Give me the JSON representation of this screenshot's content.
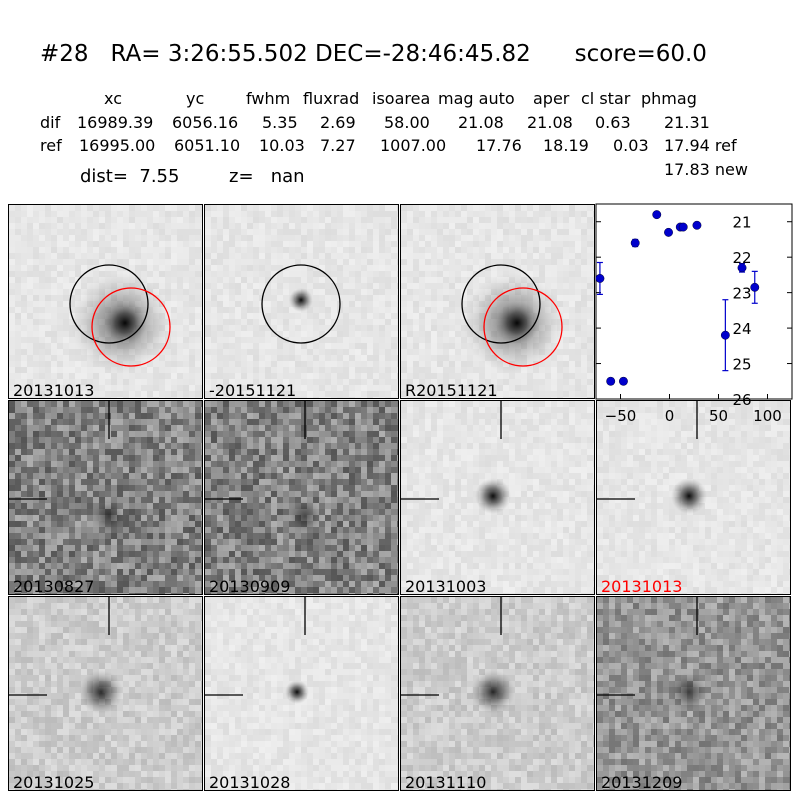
{
  "header": {
    "title": "#28   RA= 3:26:55.502 DEC=-28:46:45.82      score=60.0"
  },
  "table": {
    "columns": [
      "xc",
      "yc",
      "fwhm",
      "fluxrad",
      "isoarea",
      "mag auto",
      "aper",
      "cl star",
      "phmag"
    ],
    "rows": [
      {
        "label": "dif",
        "values": [
          "16989.39",
          "6056.16",
          "5.35",
          "2.69",
          "58.00",
          "21.08",
          "21.08",
          "0.63",
          "21.31"
        ]
      },
      {
        "label": "ref",
        "values": [
          "16995.00",
          "6051.10",
          "10.03",
          "7.27",
          "1007.00",
          "17.76",
          "18.19",
          "0.03",
          "17.94 ref"
        ]
      }
    ],
    "phmag_new": "17.83 new"
  },
  "summary": {
    "dist": "dist=  7.55",
    "z": "z=   nan"
  },
  "stamps": [
    {
      "label": "20131013",
      "kind": "galaxy",
      "circles": true
    },
    {
      "label": "-20151121",
      "kind": "dot",
      "circles": true
    },
    {
      "label": "R20151121",
      "kind": "galaxy",
      "circles": true
    },
    {
      "label": "20130827",
      "kind": "noisy-dark"
    },
    {
      "label": "20130909",
      "kind": "noisy-dark"
    },
    {
      "label": "20131003",
      "kind": "source"
    },
    {
      "label": "20131013",
      "kind": "source",
      "highlight": "#ff0000"
    },
    {
      "label": "20131025",
      "kind": "source-soft"
    },
    {
      "label": "20131028",
      "kind": "source-small"
    },
    {
      "label": "20131110",
      "kind": "source-soft"
    },
    {
      "label": "20131209",
      "kind": "noisy-mid"
    }
  ],
  "chart_data": {
    "type": "scatter",
    "title": "",
    "xlabel": "",
    "ylabel": "",
    "xlim": [
      -75,
      125
    ],
    "ylim": [
      26,
      20.5
    ],
    "y_inverted": true,
    "xticks": [
      -50,
      0,
      50,
      100
    ],
    "yticks": [
      21,
      22,
      23,
      24,
      25,
      26
    ],
    "color": "#0000cc",
    "points": [
      {
        "x": -71,
        "y": 22.6,
        "err": 0.45
      },
      {
        "x": -60,
        "y": 25.5,
        "err": 0.08
      },
      {
        "x": -47,
        "y": 25.5,
        "err": 0.08
      },
      {
        "x": -35,
        "y": 21.6,
        "err": 0.1
      },
      {
        "x": -13,
        "y": 20.8,
        "err": 0.05
      },
      {
        "x": -1,
        "y": 21.3,
        "err": 0.05
      },
      {
        "x": 11,
        "y": 21.15,
        "err": 0.06
      },
      {
        "x": 14,
        "y": 21.15,
        "err": 0.06
      },
      {
        "x": 28,
        "y": 21.1,
        "err": 0.05
      },
      {
        "x": 57,
        "y": 24.2,
        "err": 1.0
      },
      {
        "x": 74,
        "y": 22.3,
        "err": 0.12
      },
      {
        "x": 87,
        "y": 22.85,
        "err": 0.45
      }
    ]
  }
}
